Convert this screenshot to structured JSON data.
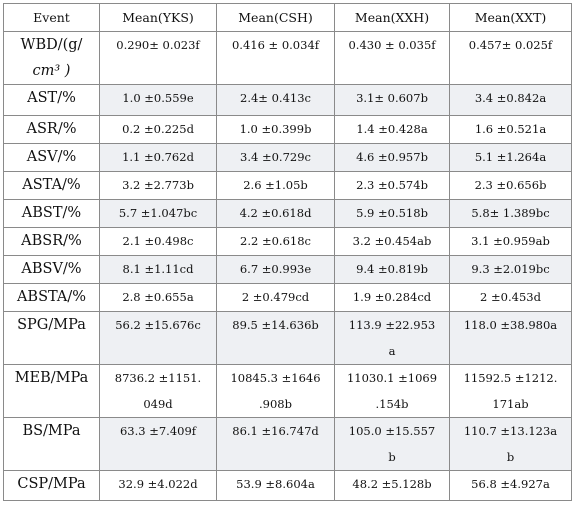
{
  "table": {
    "headers": [
      "Event",
      "Mean(YKS)",
      "Mean(CSH)",
      "Mean(XXH)",
      "Mean(XXT)"
    ],
    "rows": [
      {
        "event_line1": "WBD/(g/",
        "event_line2": "cm³ )",
        "cells": [
          "0.290±  0.023f",
          "0.416 ±  0.034f",
          "0.430 ±  0.035f",
          "0.457±  0.025f"
        ]
      },
      {
        "event": "AST/%",
        "cells": [
          "1.0 ±0.559e",
          "2.4±  0.413c",
          "3.1±  0.607b",
          "3.4 ±0.842a"
        ]
      },
      {
        "event": "ASR/%",
        "cells": [
          "0.2 ±0.225d",
          "1.0 ±0.399b",
          "1.4 ±0.428a",
          "1.6 ±0.521a"
        ]
      },
      {
        "event": "ASV/%",
        "cells": [
          "1.1 ±0.762d",
          "3.4 ±0.729c",
          "4.6 ±0.957b",
          "5.1 ±1.264a"
        ]
      },
      {
        "event": "ASTA/%",
        "cells": [
          "3.2 ±2.773b",
          "2.6 ±1.05b",
          "2.3 ±0.574b",
          "2.3 ±0.656b"
        ]
      },
      {
        "event": "ABST/%",
        "cells": [
          "5.7 ±1.047bc",
          "4.2 ±0.618d",
          "5.9 ±0.518b",
          "5.8±  1.389bc"
        ]
      },
      {
        "event": "ABSR/%",
        "cells": [
          "2.1 ±0.498c",
          "2.2 ±0.618c",
          "3.2 ±0.454ab",
          "3.1 ±0.959ab"
        ]
      },
      {
        "event": "ABSV/%",
        "cells": [
          "8.1 ±1.11cd",
          "6.7 ±0.993e",
          "9.4 ±0.819b",
          "9.3 ±2.019bc"
        ]
      },
      {
        "event": "ABSTA/%",
        "cells": [
          "2.8 ±0.655a",
          "2 ±0.479cd",
          "1.9 ±0.284cd",
          "2 ±0.453d"
        ]
      },
      {
        "event": "SPG/MPa",
        "cells": [
          "56.2 ±15.676c",
          "89.5 ±14.636b",
          "113.9 ±22.953",
          "118.0 ±38.980a"
        ],
        "cells_line2": [
          "",
          "",
          "a",
          ""
        ]
      },
      {
        "event": "MEB/MPa",
        "cells": [
          "8736.2 ±1151.",
          "10845.3 ±1646",
          "11030.1 ±1069",
          "11592.5 ±1212."
        ],
        "cells_line2": [
          "049d",
          ".908b",
          ".154b",
          "171ab"
        ]
      },
      {
        "event": "BS/MPa",
        "cells": [
          "63.3 ±7.409f",
          "86.1 ±16.747d",
          "105.0 ±15.557",
          "110.7 ±13.123a"
        ],
        "cells_line2": [
          "",
          "",
          "b",
          "b"
        ]
      },
      {
        "event": "CSP/MPa",
        "cells": [
          "32.9 ±4.022d",
          "53.9 ±8.604a",
          "48.2 ±5.128b",
          "56.8 ±4.927a"
        ]
      }
    ]
  }
}
